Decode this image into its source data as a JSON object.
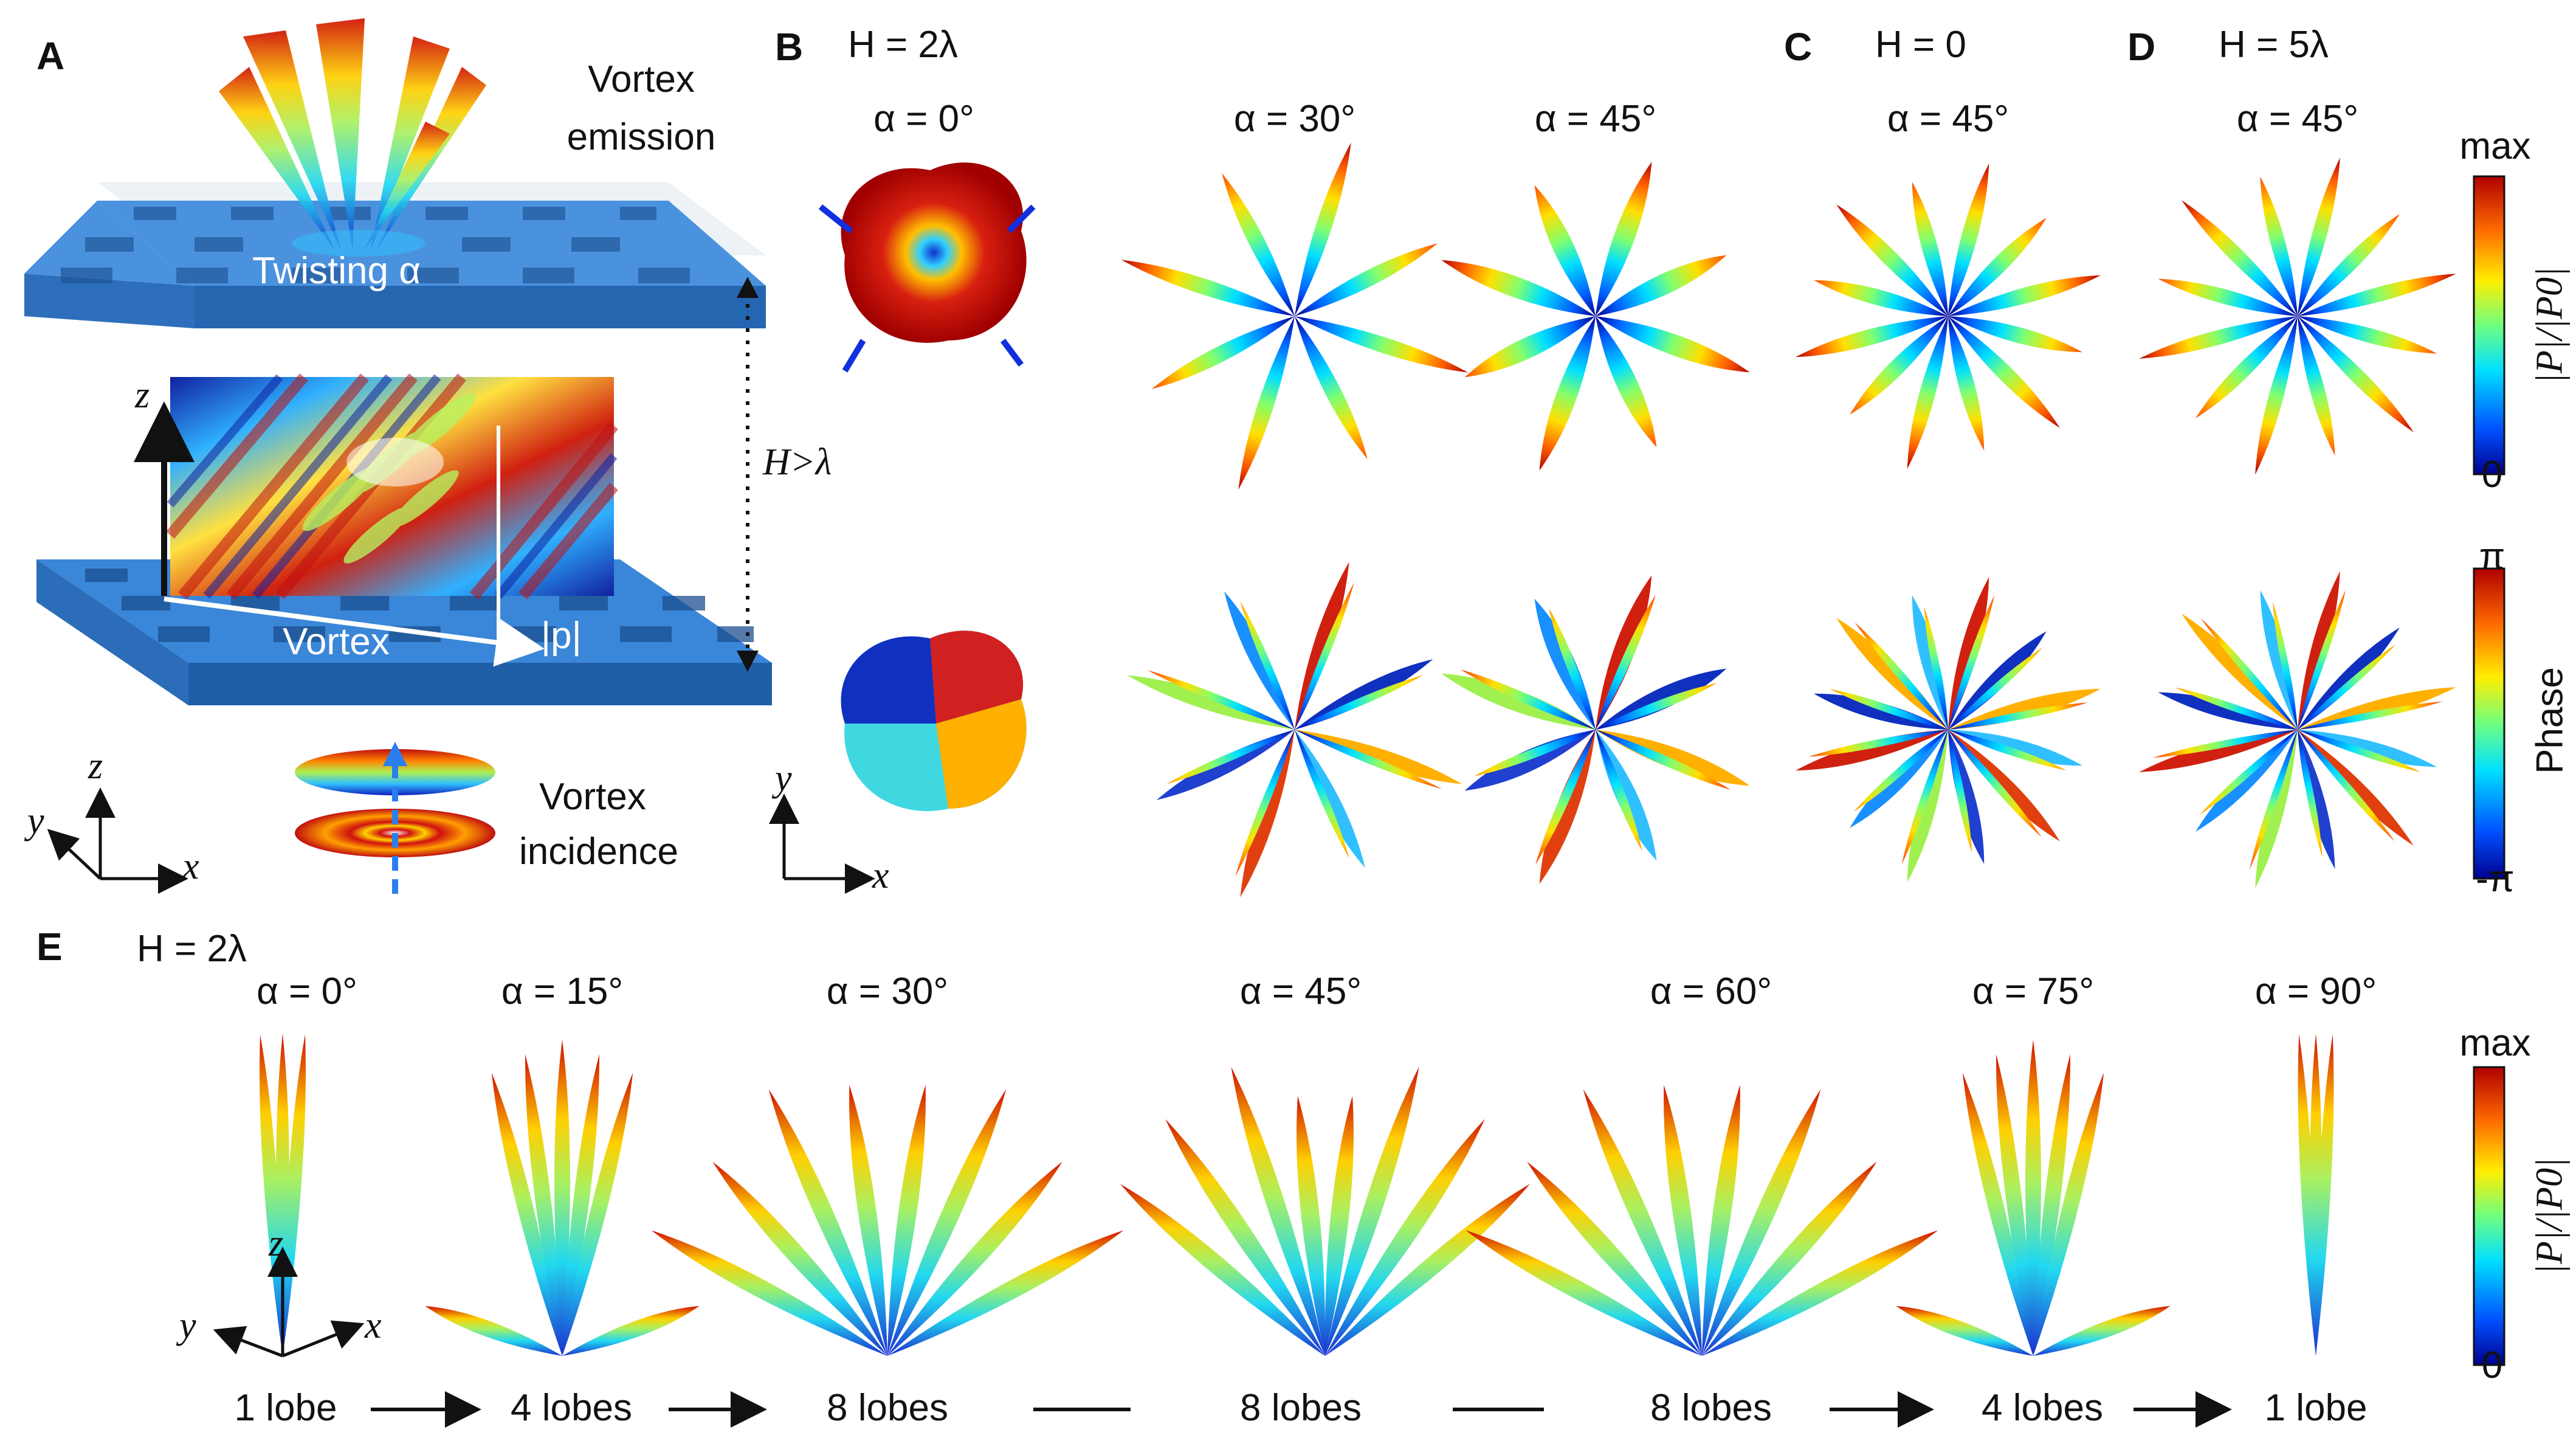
{
  "panels": {
    "A": {
      "label": "A",
      "vortex_emission": [
        "Vortex",
        "emission"
      ],
      "twisting": "Twisting α",
      "height_label": "H>λ",
      "vortex_arrow": "Vortex",
      "p_label": "|p|",
      "z_axis": "z",
      "coord_axes": {
        "x": "x",
        "y": "y",
        "z": "z"
      },
      "vortex_incidence": [
        "Vortex",
        "incidence"
      ]
    },
    "B": {
      "label": "B",
      "header": "H = 2λ",
      "angles": [
        "α = 0°",
        "α = 30°",
        "α = 45°"
      ],
      "coord_axes": {
        "x": "x",
        "y": "y"
      }
    },
    "C": {
      "label": "C",
      "header": "H = 0",
      "angles": [
        "α = 45°"
      ]
    },
    "D": {
      "label": "D",
      "header": "H = 5λ",
      "angles": [
        "α = 45°"
      ]
    },
    "E": {
      "label": "E",
      "header": "H = 2λ",
      "angles": [
        "α = 0°",
        "α = 15°",
        "α = 30°",
        "α = 45°",
        "α = 60°",
        "α = 75°",
        "α = 90°"
      ],
      "lobes": [
        "1 lobe",
        "4 lobes",
        "8 lobes",
        "8 lobes",
        "8 lobes",
        "4 lobes",
        "1 lobe"
      ],
      "coord_axes": {
        "x": "x",
        "y": "y",
        "z": "z"
      }
    }
  },
  "colorbars": {
    "amplitude_top": {
      "max": "max",
      "min": "0",
      "title": "|P|/|P0|"
    },
    "phase": {
      "max": "π",
      "min": "-π",
      "title": "Phase"
    },
    "amplitude_bottom": {
      "max": "max",
      "min": "0",
      "title": "|P|/|P0|"
    }
  },
  "colors": {
    "jet": [
      "#00008f",
      "#0050ff",
      "#00e0ff",
      "#70ff80",
      "#ffee00",
      "#ff6a00",
      "#b00000"
    ],
    "metasurface_blue": "#2f7fd0"
  }
}
